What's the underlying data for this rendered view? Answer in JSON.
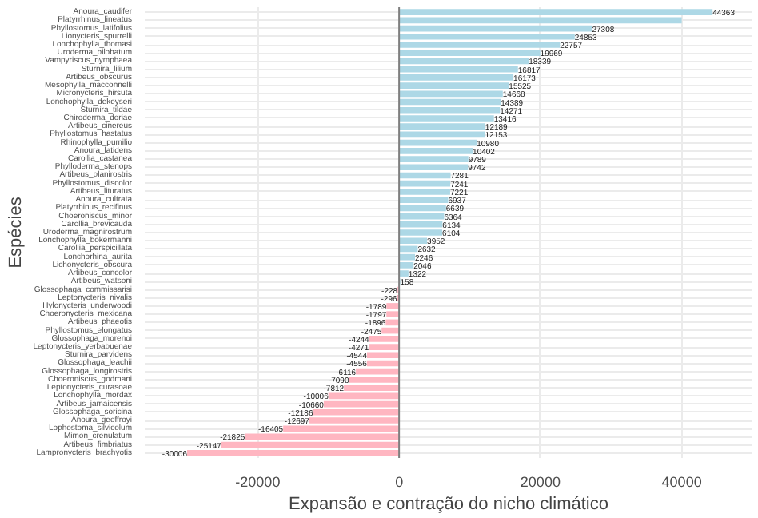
{
  "chart_data": {
    "type": "bar",
    "orientation": "horizontal",
    "xlabel": "Expansão e contração do nicho climático",
    "ylabel": "Espécies",
    "categories": [
      "Anoura_caudifer",
      "Platyrrhinus_lineatus",
      "Phyllostomus_latifolius",
      "Lionycteris_spurrelli",
      "Lonchophylla_thomasi",
      "Uroderma_bilobatum",
      "Vampyriscus_nymphaea",
      "Sturnira_lilium",
      "Artibeus_obscurus",
      "Mesophylla_macconnelli",
      "Micronycteris_hirsuta",
      "Lonchophylla_dekeyseri",
      "Sturnira_tildae",
      "Chiroderma_doriae",
      "Artibeus_cinereus",
      "Phyllostomus_hastatus",
      "Rhinophylla_pumilio",
      "Anoura_latidens",
      "Carollia_castanea",
      "Phylloderma_stenops",
      "Artibeus_planirostris",
      "Phyllostomus_discolor",
      "Artibeus_lituratus",
      "Anoura_cultrata",
      "Platyrrhinus_recifinus",
      "Choeroniscus_minor",
      "Carollia_brevicauda",
      "Uroderma_magnirostrum",
      "Lonchophylla_bokermanni",
      "Carollia_perspicillata",
      "Lonchorhina_aurita",
      "Lichonycteris_obscura",
      "Artibeus_concolor",
      "Artibeus_watsoni",
      "Glossophaga_commissarisi",
      "Leptonycteris_nivalis",
      "Hylonycteris_underwoodi",
      "Choeronycteris_mexicana",
      "Artibeus_phaeotis",
      "Phyllostomus_elongatus",
      "Glossophaga_morenoi",
      "Leptonycteris_yerbabuenae",
      "Sturnira_parvidens",
      "Glossophaga_leachii",
      "Glossophaga_longirostris",
      "Choeroniscus_godmani",
      "Leptonycteris_curasoae",
      "Lonchophylla_mordax",
      "Artibeus_jamaicensis",
      "Glossophaga_soricina",
      "Anoura_geoffroyi",
      "Lophostoma_silvicolum",
      "Mimon_crenulatum",
      "Artibeus_fimbriatus",
      "Lampronycteris_brachyotis"
    ],
    "values": [
      44363,
      40000,
      27308,
      24853,
      22757,
      19969,
      18339,
      16817,
      16173,
      15525,
      14668,
      14389,
      14271,
      13416,
      12189,
      12153,
      10980,
      10402,
      9789,
      9742,
      7281,
      7241,
      7221,
      6937,
      6639,
      6364,
      6134,
      6104,
      3952,
      2632,
      2246,
      2046,
      1322,
      158,
      -228,
      -296,
      -1789,
      -1797,
      -1896,
      -2475,
      -4244,
      -4271,
      -4544,
      -4556,
      -6116,
      -7090,
      -7812,
      -10006,
      -10660,
      -12186,
      -12697,
      -16405,
      -21825,
      -25147,
      -30006
    ],
    "value_labels": [
      "44363",
      null,
      "27308",
      "24853",
      "22757",
      "19969",
      "18339",
      "16817",
      "16173",
      "15525",
      "14668",
      "14389",
      "14271",
      "13416",
      "12189",
      "12153",
      "10980",
      "10402",
      "9789",
      "9742",
      "7281",
      "7241",
      "7221",
      "6937",
      "6639",
      "6364",
      "6134",
      "6104",
      "3952",
      "2632",
      "2246",
      "2046",
      "1322",
      "158",
      "-228",
      "-296",
      "-1789",
      "-1797",
      "-1896",
      "-2475",
      "-4244",
      "-4271",
      "-4544",
      "-4556",
      "-6116",
      "-7090",
      "-7812",
      "-10006",
      "-10660",
      "-12186",
      "-12697",
      "-16405",
      "-21825",
      "-25147",
      "-30006"
    ],
    "colors": [
      "#add8e6",
      "#add8e6",
      "#add8e6",
      "#add8e6",
      "#add8e6",
      "#add8e6",
      "#add8e6",
      "#add8e6",
      "#add8e6",
      "#add8e6",
      "#add8e6",
      "#add8e6",
      "#add8e6",
      "#add8e6",
      "#add8e6",
      "#add8e6",
      "#add8e6",
      "#add8e6",
      "#add8e6",
      "#add8e6",
      "#add8e6",
      "#add8e6",
      "#add8e6",
      "#add8e6",
      "#add8e6",
      "#add8e6",
      "#add8e6",
      "#add8e6",
      "#add8e6",
      "#add8e6",
      "#add8e6",
      "#add8e6",
      "#add8e6",
      "#add8e6",
      "#ffb6c1",
      "#ffb6c1",
      "#ffb6c1",
      "#ffb6c1",
      "#ffb6c1",
      "#ffb6c1",
      "#ffb6c1",
      "#ffb6c1",
      "#ffb6c1",
      "#ffb6c1",
      "#ffb6c1",
      "#ffb6c1",
      "#ffb6c1",
      "#ffb6c1",
      "#ffb6c1",
      "#ffb6c1",
      "#ffb6c1",
      "#ffb6c1",
      "#ffb6c1",
      "#ffb6c1",
      "#ffb6c1"
    ],
    "xlim": [
      -36000,
      50000
    ],
    "xticks": [
      -20000,
      0,
      20000,
      40000
    ],
    "grid": true,
    "ref_lines": [
      {
        "axis": "x",
        "value": 0,
        "color": "#7f7f7f"
      }
    ]
  }
}
